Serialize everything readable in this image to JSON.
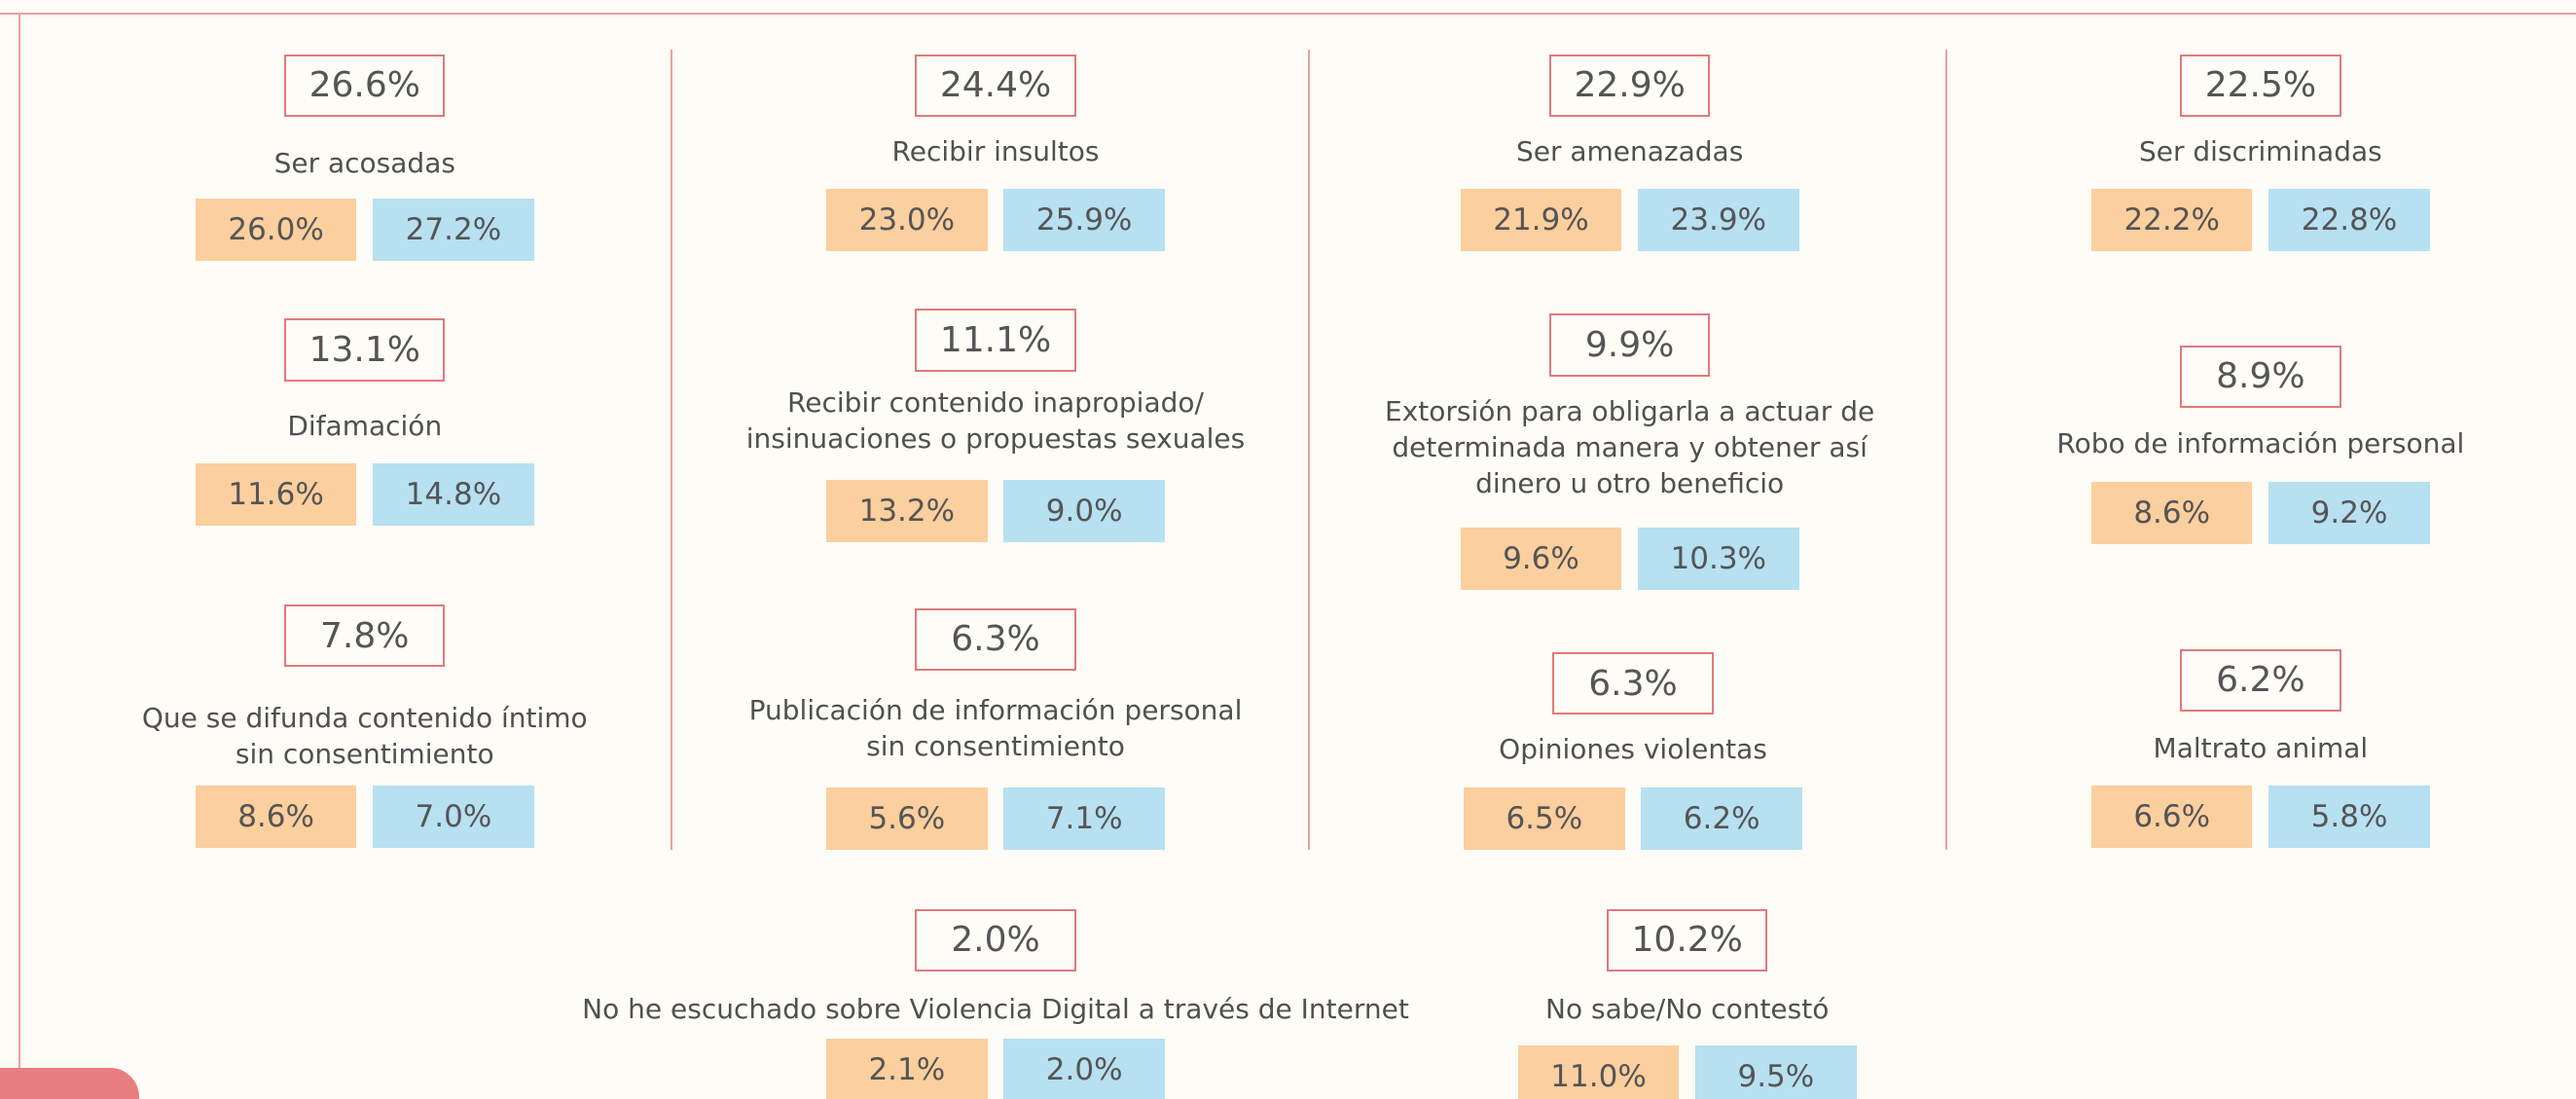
{
  "items": [
    {
      "total": "26.6%",
      "label": [
        "Ser acosadas"
      ],
      "values": [
        "26.0%",
        "27.2%"
      ]
    },
    {
      "total": "13.1%",
      "label": [
        "Difamación"
      ],
      "values": [
        "11.6%",
        "14.8%"
      ]
    },
    {
      "total": "7.8%",
      "label": [
        "Que se difunda contenido íntimo",
        "sin consentimiento"
      ],
      "values": [
        "8.6%",
        "7.0%"
      ]
    },
    {
      "total": "24.4%",
      "label": [
        "Recibir insultos"
      ],
      "values": [
        "23.0%",
        "25.9%"
      ]
    },
    {
      "total": "11.1%",
      "label": [
        "Recibir contenido inapropiado/",
        "insinuaciones o propuestas sexuales"
      ],
      "values": [
        "13.2%",
        "9.0%"
      ]
    },
    {
      "total": "6.3%",
      "label": [
        "Publicación de información personal",
        "sin consentimiento"
      ],
      "values": [
        "5.6%",
        "7.1%"
      ]
    },
    {
      "total": "22.9%",
      "label": [
        "Ser amenazadas"
      ],
      "values": [
        "21.9%",
        "23.9%"
      ]
    },
    {
      "total": "9.9%",
      "label": [
        "Extorsión para obligarla a actuar de",
        "determinada manera y obtener así",
        "dinero u otro beneficio"
      ],
      "values": [
        "9.6%",
        "10.3%"
      ]
    },
    {
      "total": "6.3%",
      "label": [
        "Opiniones violentas"
      ],
      "values": [
        "6.5%",
        "6.2%"
      ]
    },
    {
      "total": "22.5%",
      "label": [
        "Ser discriminadas"
      ],
      "values": [
        "22.2%",
        "22.8%"
      ]
    },
    {
      "total": "8.9%",
      "label": [
        "Robo de información personal"
      ],
      "values": [
        "8.6%",
        "9.2%"
      ]
    },
    {
      "total": "6.2%",
      "label": [
        "Maltrato animal"
      ],
      "values": [
        "6.6%",
        "5.8%"
      ]
    },
    {
      "total": "2.0%",
      "label": [
        "No he escuchado sobre Violencia Digital a través de Internet"
      ],
      "values": [
        "2.1%",
        "2.0%"
      ]
    },
    {
      "total": "10.2%",
      "label": [
        "No sabe/No contestó"
      ],
      "values": [
        "11.0%",
        "9.5%"
      ]
    }
  ]
}
